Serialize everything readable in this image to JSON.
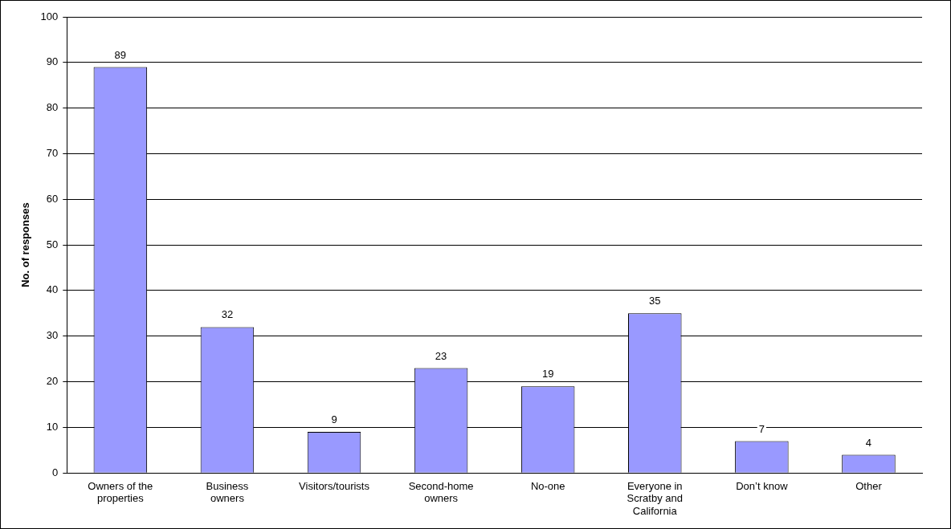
{
  "chart_data": {
    "type": "bar",
    "ylabel": "No. of responses",
    "categories": [
      "Owners of the properties",
      "Business owners",
      "Visitors/tourists",
      "Second-home owners",
      "No-one",
      "Everyone in Scratby and California",
      "Don’t know",
      "Other"
    ],
    "values": [
      89,
      32,
      9,
      23,
      19,
      35,
      7,
      4
    ],
    "color": "#9999ff",
    "ylim": [
      0,
      100
    ],
    "yticks": [
      0,
      10,
      20,
      30,
      40,
      50,
      60,
      70,
      80,
      90,
      100
    ],
    "grid": "y",
    "legend": false,
    "data_labels": true
  }
}
